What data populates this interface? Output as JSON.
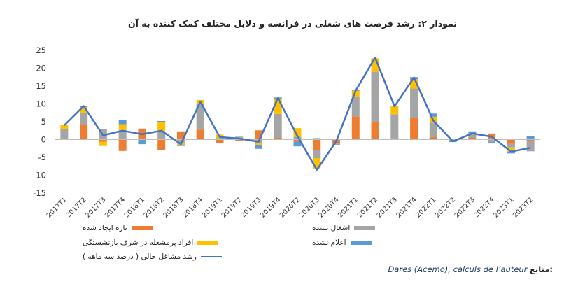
{
  "chart_data": {
    "type": "bar",
    "title": "نمودار ۲: رشد فرصت های شغلی در فرانسه و دلایل مختلف کمک کننده به آن",
    "categories": [
      "2017T1",
      "2017T2",
      "2017T3",
      "2017T4",
      "2018T1",
      "2018T2",
      "2018T3",
      "2018T4",
      "2019T1",
      "2019T2",
      "2019T3",
      "2019T4",
      "2020T2",
      "2020T3",
      "2020T4",
      "2021T1",
      "2021T2",
      "2021T3",
      "2021T4",
      "2022T1",
      "2022T2",
      "2022T3",
      "2022T4",
      "2023T1",
      "2023T2"
    ],
    "ylim": [
      -15,
      25
    ],
    "yticks": [
      25,
      20,
      15,
      10,
      5,
      0,
      -5,
      -10,
      -15
    ],
    "grid": false,
    "legend_position": "bottom",
    "series": [
      {
        "name": "تازه ایجاد شده",
        "color": "#ed7d31",
        "values": [
          0,
          4.3,
          -0.6,
          -3.2,
          2.9,
          -2.9,
          2.3,
          2.8,
          -1.0,
          -0.3,
          2.6,
          0.5,
          -0.6,
          -3.0,
          -1.0,
          6.5,
          5.0,
          0.3,
          6.0,
          0.7,
          -0.2,
          0.5,
          1.7,
          -1.2,
          -0.5
        ]
      },
      {
        "name": "اشغال نشده",
        "color": "#a5a5a5",
        "values": [
          3.0,
          3.2,
          2.9,
          2.7,
          0.2,
          2.4,
          -1.0,
          7.3,
          0.4,
          0.3,
          -1.0,
          6.7,
          0.8,
          -2.2,
          -0.5,
          5.5,
          14.0,
          6.8,
          8.3,
          4.0,
          -0.2,
          0.8,
          -0.7,
          -1.0,
          -2.8
        ]
      },
      {
        "name": "افراد پرمشغله در شرف بازنشستگی",
        "color": "#ffc000",
        "values": [
          1.2,
          1.6,
          -1.2,
          1.6,
          0,
          2.6,
          -0.6,
          1.0,
          1.0,
          0.3,
          -0.6,
          4.2,
          2.4,
          -2.9,
          0,
          1.7,
          3.8,
          2.4,
          2.6,
          1.7,
          0,
          0.4,
          0,
          -1.2,
          0
        ]
      },
      {
        "name": "اعلام نشده",
        "color": "#5b9bd5",
        "values": [
          0,
          0.3,
          0,
          1.2,
          -1.3,
          0.2,
          -0.2,
          0,
          0,
          0.2,
          -1.0,
          0.4,
          -1.3,
          0.4,
          0,
          0.3,
          0,
          0,
          0.6,
          0.9,
          -0.3,
          0.6,
          -0.4,
          -0.5,
          1.0
        ]
      },
      {
        "name": "رشد مشاغل خالی ( درصد سه ماهه )",
        "color": "#4472c4",
        "type": "line",
        "values": [
          4.0,
          9.4,
          1.2,
          2.5,
          1.5,
          2.5,
          -1.3,
          10.6,
          0.7,
          0.3,
          -0.6,
          11.6,
          1.0,
          -8.5,
          -0.5,
          13.7,
          23.0,
          9.3,
          17.4,
          5.3,
          -0.5,
          1.7,
          0.8,
          -3.4,
          -2.3
        ]
      }
    ]
  },
  "source": {
    "label": "منابع:",
    "text": "Dares (Acemo), calculs de l’auteur"
  }
}
